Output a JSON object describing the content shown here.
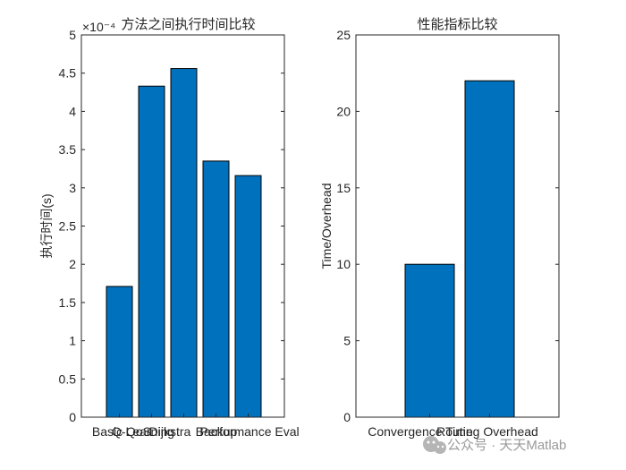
{
  "chart_data": [
    {
      "type": "bar",
      "title": "方法之间执行时间比较",
      "xlabel": "",
      "ylabel": "执行时间(s)",
      "exponent_label": "×10⁻⁴",
      "ylim": [
        0,
        5
      ],
      "yticks": [
        0,
        0.5,
        1,
        1.5,
        2,
        2.5,
        3,
        3.5,
        4,
        4.5,
        5
      ],
      "ytick_labels": [
        "0",
        "0.5",
        "1",
        "1.5",
        "2",
        "2.5",
        "3",
        "3.5",
        "4",
        "4.5",
        "5"
      ],
      "categories": [
        "Basic QoS",
        "Q-Learning",
        "Dijkstra",
        "Backup",
        "Performance Eval"
      ],
      "values": [
        1.71,
        4.33,
        4.56,
        3.35,
        3.16
      ],
      "color": "#0072BD"
    },
    {
      "type": "bar",
      "title": "性能指标比较",
      "xlabel": "",
      "ylabel": "Time/Overhead",
      "ylim": [
        0,
        25
      ],
      "yticks": [
        0,
        5,
        10,
        15,
        20,
        25
      ],
      "ytick_labels": [
        "0",
        "5",
        "10",
        "15",
        "20",
        "25"
      ],
      "categories": [
        "Convergence Time",
        "Routing Overhead"
      ],
      "values": [
        10,
        22
      ],
      "color": "#0072BD"
    }
  ],
  "watermark": {
    "text": "公众号 · 天天Matlab",
    "icon": "wechat-icon"
  }
}
